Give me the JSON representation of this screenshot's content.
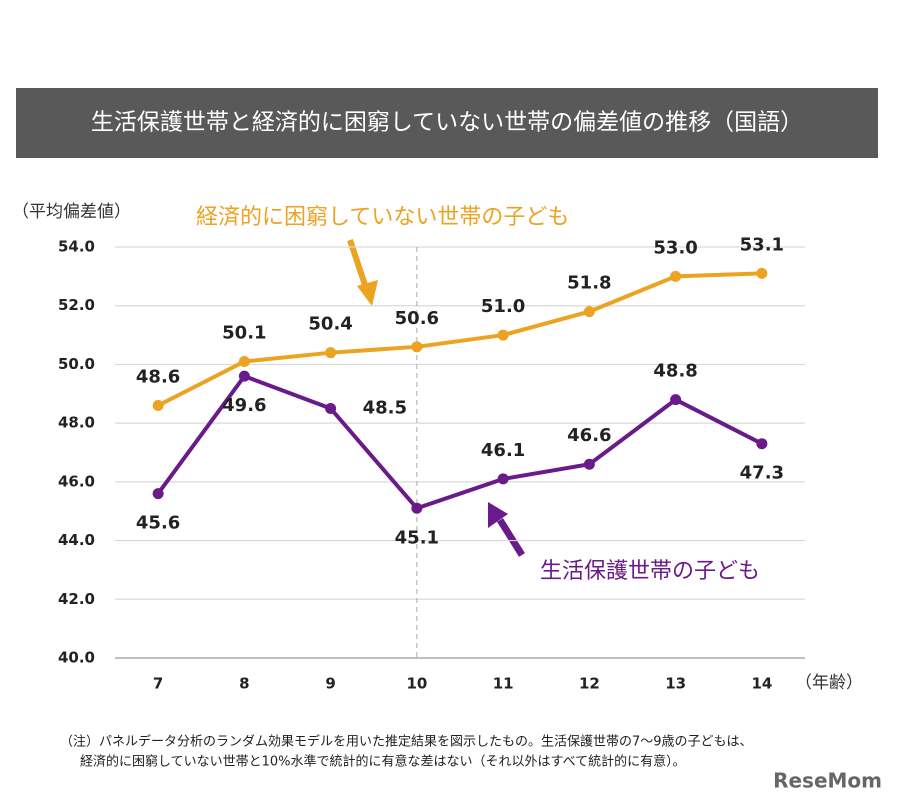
{
  "chart_data": {
    "type": "line",
    "title": "生活保護世帯と経済的に困窮していない世帯の偏差値の推移（国語）",
    "y_axis_label": "（平均偏差値）",
    "x_axis_label": "（年齢）",
    "categories": [
      "7",
      "8",
      "9",
      "10",
      "11",
      "12",
      "13",
      "14"
    ],
    "series": [
      {
        "name": "経済的に困窮していない世帯の子ども",
        "color": "#eba321",
        "values": [
          48.6,
          50.1,
          50.4,
          50.6,
          51.0,
          51.8,
          53.0,
          53.1
        ],
        "value_labels": [
          "48.6",
          "50.1",
          "50.4",
          "50.6",
          "51.0",
          "51.8",
          "53.0",
          "53.1"
        ]
      },
      {
        "name": "生活保護世帯の子ども",
        "color": "#6a1b8a",
        "values": [
          45.6,
          49.6,
          48.5,
          45.1,
          46.1,
          46.6,
          48.8,
          47.3
        ]
      }
    ],
    "ylim": [
      40,
      54
    ],
    "yticks": [
      {
        "value": 40,
        "label": "40.0"
      },
      {
        "value": 42,
        "label": "42.0"
      },
      {
        "value": 44,
        "label": "44.0"
      },
      {
        "value": 46,
        "label": "46.0"
      },
      {
        "value": 48,
        "label": "48.0"
      },
      {
        "value": 50,
        "label": "50.0"
      },
      {
        "value": 52,
        "label": "52.0"
      },
      {
        "value": 54,
        "label": "54.0"
      }
    ],
    "grid": true,
    "reference_category": "10",
    "notes": [
      "（注）パネルデータ分析のランダム効果モデルを用いた推定結果を図示したもの。生活保護世帯の7〜9歳の子どもは、",
      "経済的に困窮していない世帯と10%水準で統計的に有意な差はない（それ以外はすべて統計的に有意）。"
    ],
    "source": "ReseMom"
  }
}
